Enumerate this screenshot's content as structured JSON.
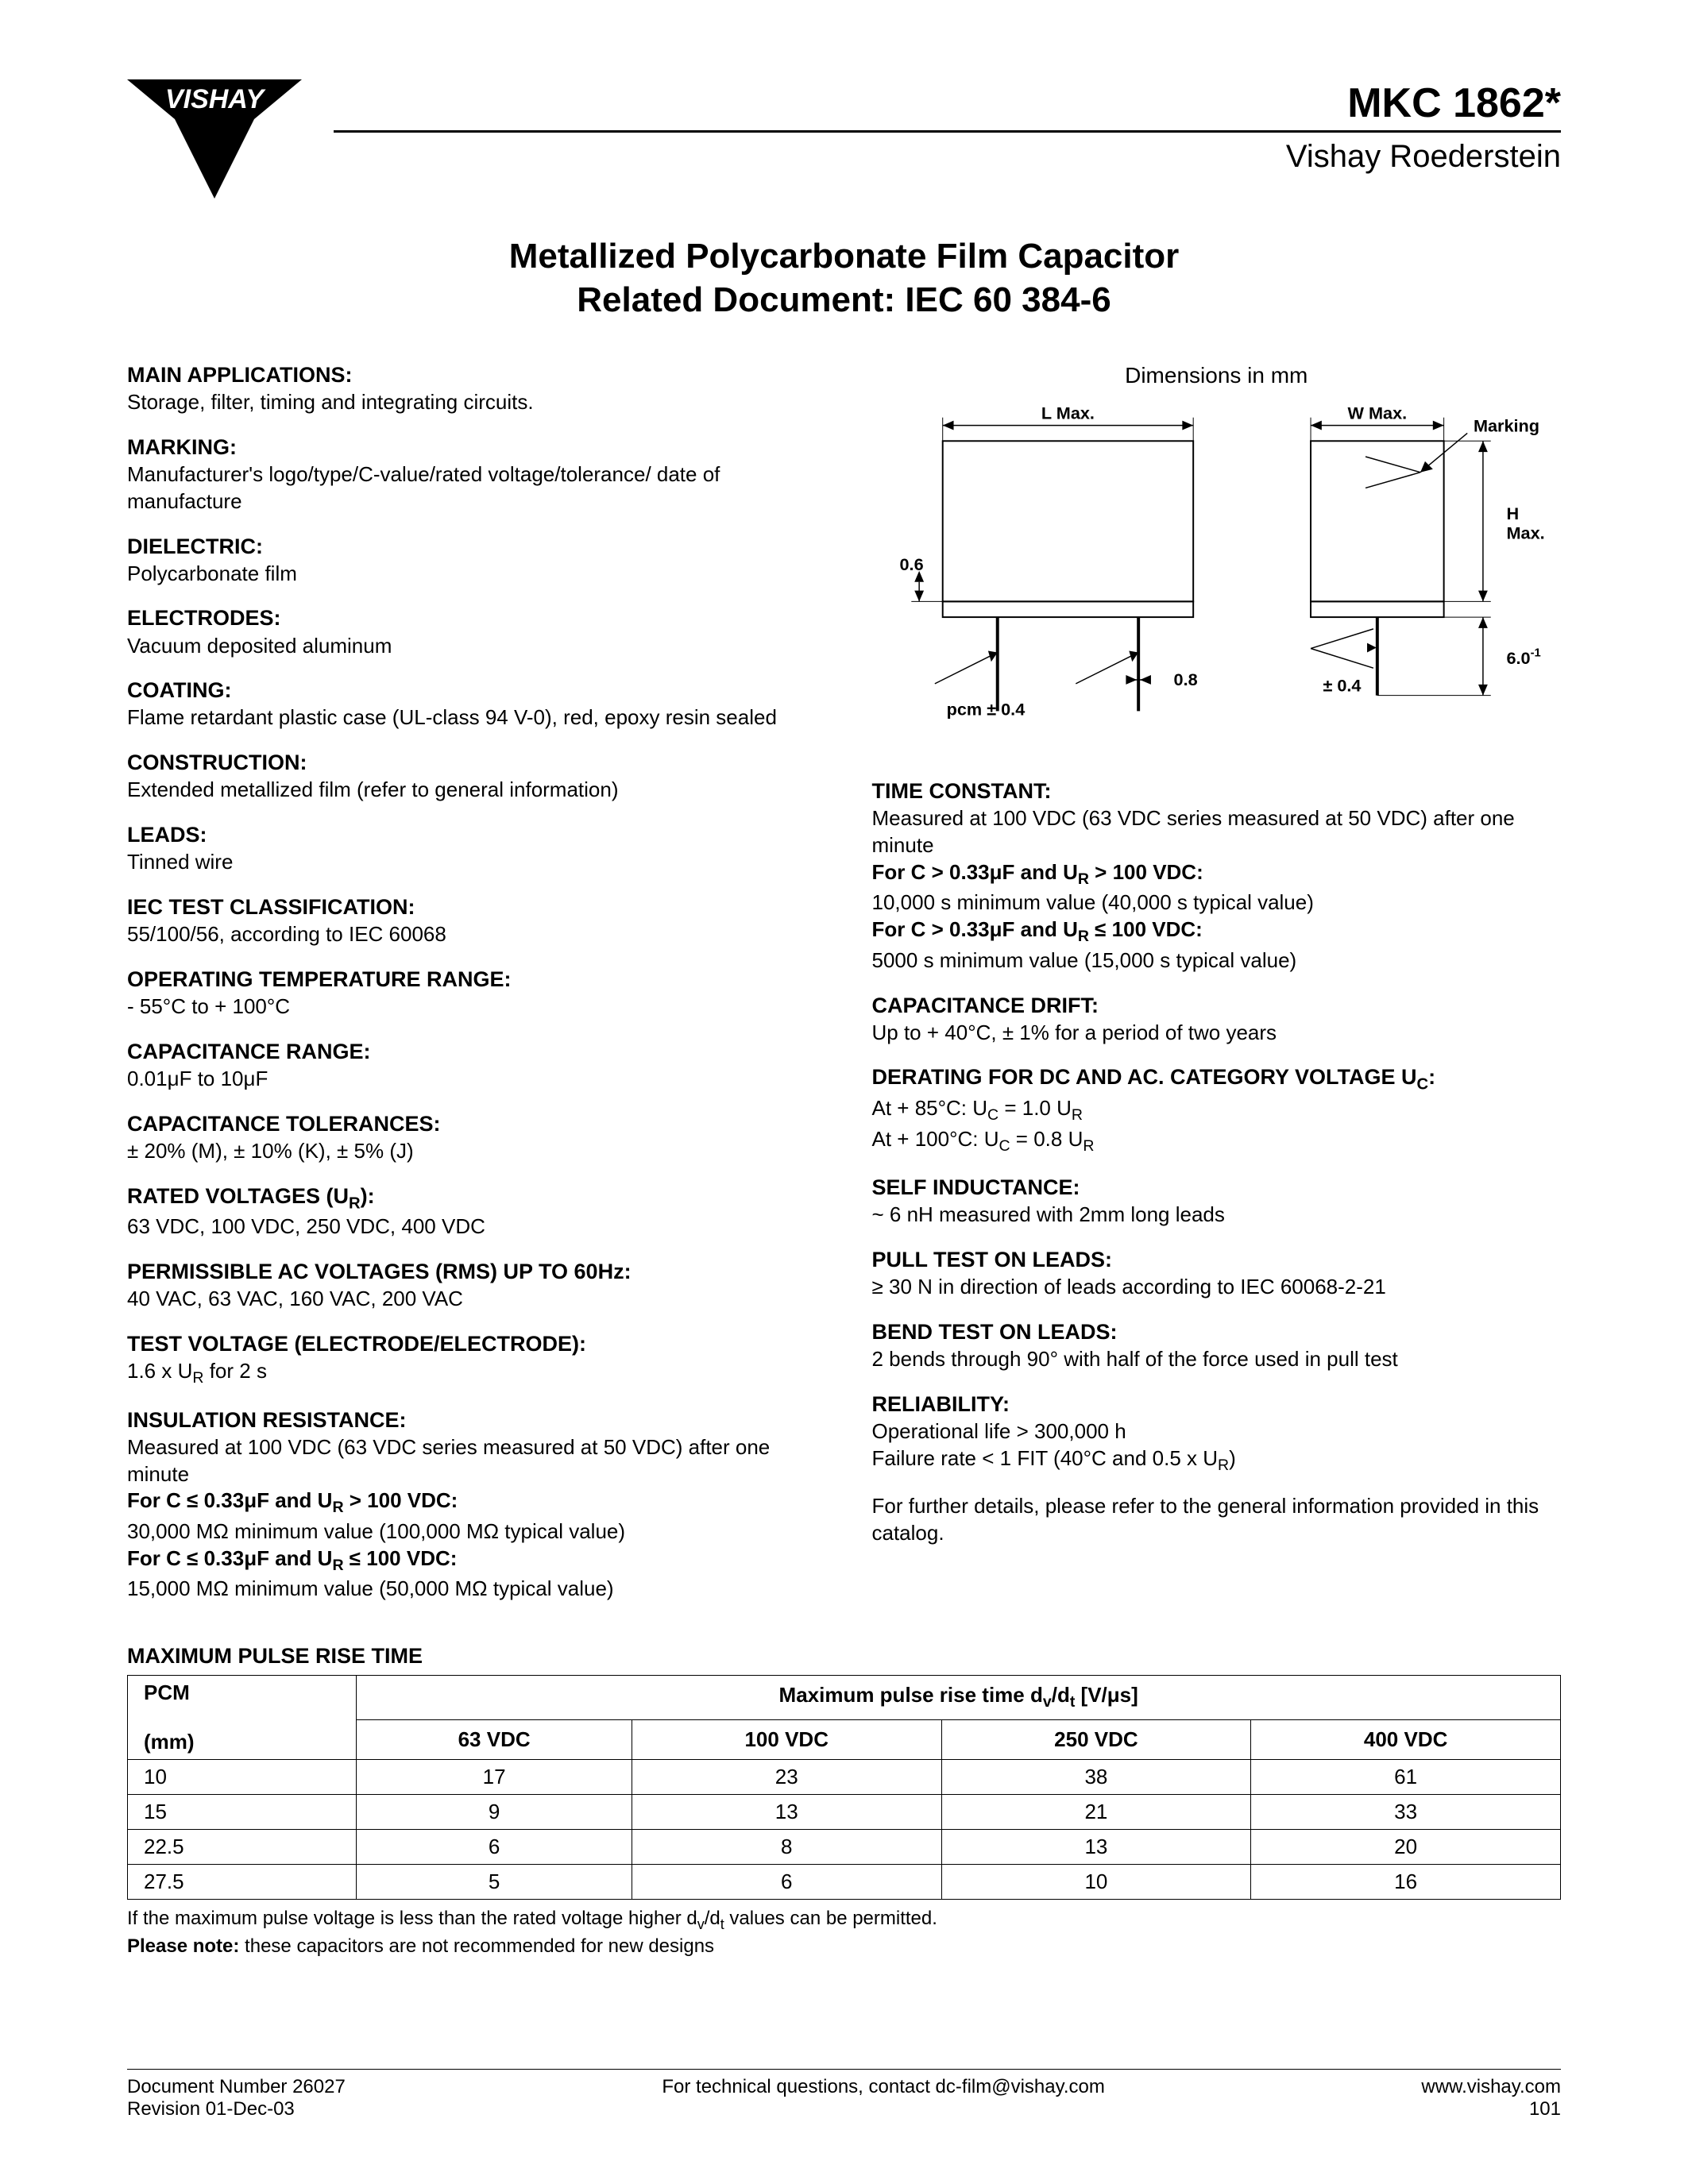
{
  "header": {
    "logo_text": "VISHAY",
    "product_code": "MKC 1862*",
    "brand_sub": "Vishay Roederstein"
  },
  "title": {
    "line1": "Metallized Polycarbonate Film Capacitor",
    "line2": "Related Document:  IEC 60 384-6"
  },
  "left_specs": [
    {
      "label": "MAIN APPLICATIONS:",
      "value": "Storage, filter, timing and integrating circuits."
    },
    {
      "label": "MARKING:",
      "value": "Manufacturer's logo/type/C-value/rated voltage/tolerance/ date of manufacture"
    },
    {
      "label": "DIELECTRIC:",
      "value": "Polycarbonate film"
    },
    {
      "label": "ELECTRODES:",
      "value": "Vacuum deposited aluminum"
    },
    {
      "label": "COATING:",
      "value": "Flame retardant plastic case (UL-class 94 V-0), red, epoxy resin sealed"
    },
    {
      "label": "CONSTRUCTION:",
      "value": "Extended metallized film (refer to general information)"
    },
    {
      "label": "LEADS:",
      "value": "Tinned wire"
    },
    {
      "label": "IEC TEST CLASSIFICATION:",
      "value": "55/100/56, according to IEC 60068"
    },
    {
      "label": "OPERATING TEMPERATURE RANGE:",
      "value": "- 55°C to + 100°C"
    },
    {
      "label": "CAPACITANCE RANGE:",
      "value": "0.01μF to 10μF"
    },
    {
      "label": "CAPACITANCE TOLERANCES:",
      "value": "± 20% (M), ± 10% (K), ± 5% (J)"
    },
    {
      "label": "RATED VOLTAGES (U",
      "sub": "R",
      "label2": "):",
      "value": "63 VDC, 100 VDC, 250 VDC, 400 VDC"
    },
    {
      "label": "PERMISSIBLE AC VOLTAGES (RMS) UP TO 60Hz:",
      "value": "40 VAC, 63 VAC, 160 VAC, 200 VAC"
    },
    {
      "label": "TEST VOLTAGE (ELECTRODE/ELECTRODE):",
      "value": "1.6 x U",
      "valsub": "R",
      "value2": " for 2 s"
    }
  ],
  "insulation": {
    "label": "INSULATION RESISTANCE:",
    "intro": "Measured at 100 VDC (63 VDC series measured at 50 VDC) after one minute",
    "cond1_label": "For C ≤ 0.33μF and U",
    "cond1_sub": "R",
    "cond1_label2": " > 100 VDC:",
    "cond1_val": "30,000 MΩ minimum value (100,000 MΩ typical value)",
    "cond2_label": "For C ≤ 0.33μF and U",
    "cond2_sub": "R",
    "cond2_label2": " ≤ 100 VDC:",
    "cond2_val": "15,000 MΩ minimum value (50,000 MΩ typical value)"
  },
  "diagram": {
    "caption": "Dimensions in mm",
    "labels": {
      "l_max": "L Max.",
      "w_max": "W Max.",
      "marking": "Marking",
      "h_max": "H\nMax.",
      "pcm": "pcm ± 0.4",
      "pin_d": "0.8",
      "top_gap": "0.6",
      "pm04": "± 0.4",
      "six": "6.0",
      "six_sup": "-1"
    }
  },
  "time_constant": {
    "label": "TIME CONSTANT:",
    "intro": "Measured at 100 VDC (63 VDC series measured at 50 VDC) after one minute",
    "cond1_label": "For C > 0.33μF and U",
    "cond1_sub": "R",
    "cond1_label2": " > 100 VDC:",
    "cond1_val": "10,000 s minimum value (40,000 s typical value)",
    "cond2_label": "For C > 0.33μF and U",
    "cond2_sub": "R",
    "cond2_label2": " ≤ 100 VDC:",
    "cond2_val": "5000 s minimum value (15,000 s typical value)"
  },
  "right_specs": [
    {
      "label": "CAPACITANCE DRIFT:",
      "value": "Up to + 40°C, ± 1% for a period of two years"
    }
  ],
  "derating": {
    "label": "DERATING FOR DC AND AC. CATEGORY VOLTAGE U",
    "sub": "C",
    "label2": ":",
    "line1a": "At + 85°C:  U",
    "line1sub": "C",
    "line1b": " = 1.0 U",
    "line1sub2": "R",
    "line2a": "At + 100°C:  U",
    "line2sub": "C",
    "line2b": " = 0.8 U",
    "line2sub2": "R"
  },
  "right_specs2": [
    {
      "label": "SELF INDUCTANCE:",
      "value": "~ 6 nH measured with 2mm long leads"
    },
    {
      "label": "PULL TEST ON LEADS:",
      "value": "≥ 30 N in direction of leads according to IEC 60068-2-21"
    },
    {
      "label": "BEND TEST ON LEADS:",
      "value": "2 bends through 90° with half of the force used in pull test"
    }
  ],
  "reliability": {
    "label": "RELIABILITY:",
    "line1": "Operational life > 300,000 h",
    "line2a": "Failure rate < 1 FIT (40°C and 0.5 x U",
    "line2sub": "R",
    "line2b": ")"
  },
  "further": "For further details, please refer to the general information provided in this catalog.",
  "pulse_table": {
    "title": "MAXIMUM PULSE RISE TIME",
    "pcm_header": "PCM",
    "pcm_unit": "(mm)",
    "span_header_a": "Maximum pulse rise time d",
    "span_sub1": "v",
    "span_header_b": "/d",
    "span_sub2": "t",
    "span_header_c": " [V/μs]",
    "cols": [
      "63 VDC",
      "100 VDC",
      "250 VDC",
      "400 VDC"
    ],
    "rows": [
      {
        "pcm": "10",
        "v": [
          "17",
          "23",
          "38",
          "61"
        ]
      },
      {
        "pcm": "15",
        "v": [
          "9",
          "13",
          "21",
          "33"
        ]
      },
      {
        "pcm": "22.5",
        "v": [
          "6",
          "8",
          "13",
          "20"
        ]
      },
      {
        "pcm": "27.5",
        "v": [
          "5",
          "6",
          "10",
          "16"
        ]
      }
    ],
    "note1a": "If the maximum pulse voltage is less than the rated voltage higher d",
    "note1sub1": "v",
    "note1b": "/d",
    "note1sub2": "t",
    "note1c": " values can be permitted.",
    "note2_bold": "Please note:",
    "note2_rest": " these capacitors are not recommended for new designs"
  },
  "footer": {
    "doc_num": "Document Number 26027",
    "revision": "Revision 01-Dec-03",
    "center": "For technical questions, contact dc-film@vishay.com",
    "url": "www.vishay.com",
    "page": "101"
  },
  "colors": {
    "text": "#000000",
    "bg": "#ffffff",
    "line": "#000000"
  }
}
